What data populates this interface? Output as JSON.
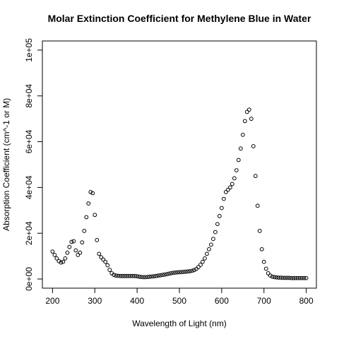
{
  "chart_data": {
    "type": "scatter",
    "title": "Molar Extinction Coefficient for Methylene Blue in Water",
    "x_label": "Wavelength of Light (nm)",
    "y_label": "Absorption Coefficient (cm^-1 or M)",
    "color": "#000000",
    "xlim": [
      176,
      824
    ],
    "xticks": [
      200,
      300,
      400,
      500,
      600,
      700,
      800
    ],
    "ylim": [
      -4000,
      104000
    ],
    "yticks": [
      {
        "value": 0,
        "label": "0e+00"
      },
      {
        "value": 20000,
        "label": "2e+04"
      },
      {
        "value": 40000,
        "label": "4e+04"
      },
      {
        "value": 60000,
        "label": "6e+04"
      },
      {
        "value": 80000,
        "label": "8e+04"
      },
      {
        "value": 100000,
        "label": "1e+05"
      }
    ],
    "x": [
      200,
      205,
      210,
      215,
      220,
      225,
      230,
      235,
      240,
      245,
      250,
      255,
      260,
      265,
      270,
      275,
      280,
      285,
      290,
      295,
      300,
      305,
      310,
      315,
      320,
      325,
      330,
      335,
      340,
      345,
      350,
      355,
      360,
      365,
      370,
      375,
      380,
      385,
      390,
      395,
      400,
      405,
      410,
      415,
      420,
      425,
      430,
      435,
      440,
      445,
      450,
      455,
      460,
      465,
      470,
      475,
      480,
      485,
      490,
      495,
      500,
      505,
      510,
      515,
      520,
      525,
      530,
      535,
      540,
      545,
      550,
      555,
      560,
      565,
      570,
      575,
      580,
      585,
      590,
      595,
      600,
      605,
      610,
      615,
      620,
      625,
      630,
      635,
      640,
      645,
      650,
      655,
      660,
      665,
      670,
      675,
      680,
      685,
      690,
      695,
      700,
      705,
      710,
      715,
      720,
      725,
      730,
      735,
      740,
      745,
      750,
      755,
      760,
      765,
      770,
      775,
      780,
      785,
      790,
      795,
      800
    ],
    "values": [
      12000,
      10500,
      9000,
      7800,
      7200,
      7500,
      9000,
      11500,
      14000,
      16200,
      16500,
      12500,
      10500,
      11500,
      16000,
      21000,
      27000,
      33000,
      38000,
      37500,
      28000,
      17000,
      11000,
      9500,
      8500,
      7500,
      6000,
      4000,
      2500,
      1800,
      1500,
      1400,
      1300,
      1300,
      1300,
      1300,
      1300,
      1300,
      1300,
      1300,
      1200,
      1000,
      900,
      800,
      800,
      900,
      1000,
      1100,
      1200,
      1300,
      1500,
      1600,
      1800,
      1900,
      2100,
      2300,
      2500,
      2700,
      2800,
      2900,
      3000,
      3000,
      3100,
      3200,
      3300,
      3400,
      3600,
      3900,
      4400,
      5200,
      6200,
      7500,
      9000,
      11000,
      13000,
      15000,
      17500,
      20500,
      24000,
      27500,
      31000,
      35000,
      38000,
      39000,
      40000,
      41500,
      44000,
      47500,
      52000,
      57000,
      63000,
      69000,
      73000,
      74000,
      70000,
      58000,
      45000,
      32000,
      21000,
      13000,
      7500,
      4500,
      2500,
      1500,
      1000,
      800,
      700,
      600,
      600,
      500,
      500,
      500,
      500,
      400,
      400,
      400,
      400,
      400,
      400,
      400,
      400
    ]
  }
}
